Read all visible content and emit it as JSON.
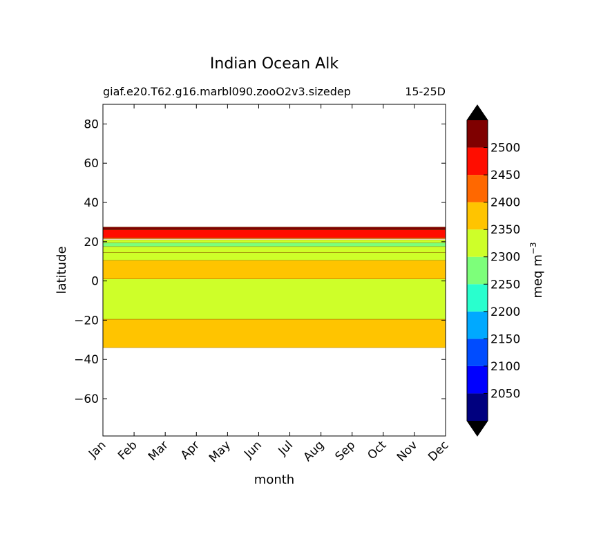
{
  "chart_data": {
    "type": "contour",
    "title": "Indian Ocean Alk",
    "subtitle_left": "giaf.e20.T62.g16.marbl090.zooO2v3.sizedep",
    "subtitle_right": "15-25D",
    "xlabel": "month",
    "ylabel": "latitude",
    "x_categories": [
      "Jan",
      "Feb",
      "Mar",
      "Apr",
      "May",
      "Jun",
      "Jul",
      "Aug",
      "Sep",
      "Oct",
      "Nov",
      "Dec"
    ],
    "xlim": [
      1,
      12
    ],
    "ylim": [
      -79,
      90
    ],
    "yticks": [
      "80",
      "60",
      "40",
      "20",
      "0",
      "−20",
      "−40",
      "−60"
    ],
    "ytick_values": [
      80,
      60,
      40,
      20,
      0,
      -20,
      -40,
      -60
    ],
    "colorbar": {
      "label": "meq m",
      "label_exponent": "−3",
      "levels": [
        2000,
        2050,
        2100,
        2150,
        2200,
        2250,
        2300,
        2350,
        2400,
        2450,
        2500,
        2550
      ],
      "tick_labels": [
        "2050",
        "2100",
        "2150",
        "2200",
        "2250",
        "2300",
        "2350",
        "2400",
        "2450",
        "2500"
      ],
      "tick_values": [
        2050,
        2100,
        2150,
        2200,
        2250,
        2300,
        2350,
        2400,
        2450,
        2500
      ],
      "colors": [
        "#00007f",
        "#0000ff",
        "#004cff",
        "#00a9ff",
        "#29ffce",
        "#7dff7a",
        "#ceff29",
        "#ffc400",
        "#ff6800",
        "#ff0d00",
        "#7f0000"
      ],
      "extend": "both",
      "extend_colors": [
        "#000000",
        "#000000"
      ]
    },
    "bands": [
      {
        "level": "2350-2400",
        "color": "#ffc400",
        "lat_min": -34,
        "lat_max": -19.5
      },
      {
        "level": "2300-2350",
        "color": "#ceff29",
        "lat_min": -19.5,
        "lat_max": 1
      },
      {
        "level": "2350-2400",
        "color": "#ffc400",
        "lat_min": 1,
        "lat_max": 10.5
      },
      {
        "level": "2300-2350",
        "color": "#ceff29",
        "lat_min": 10.5,
        "lat_max": 14.5
      },
      {
        "level": "2350-2400",
        "color": "#ffc400",
        "lat_min": 14.5,
        "lat_max": 20.5
      },
      {
        "level": "2300-2350",
        "color": "#ceff29",
        "lat_min": 14.5,
        "lat_max": 21
      },
      {
        "level": "2250-2300",
        "color": "#7dff7a",
        "lat_min": 17.5,
        "lat_max": 19.5
      },
      {
        "level": "2400-2450",
        "color": "#ff6800",
        "lat_min": 21.5,
        "lat_max": 23
      },
      {
        "level": "2450-2500",
        "color": "#ff0d00",
        "lat_min": 22,
        "lat_max": 26
      },
      {
        "level": "2500-2550",
        "color": "#7f0000",
        "lat_min": 26,
        "lat_max": 27.5
      }
    ]
  }
}
